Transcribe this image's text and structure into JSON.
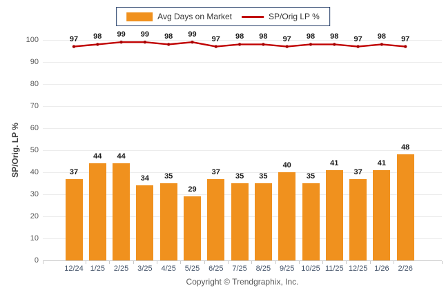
{
  "chart_data": {
    "type": "bar",
    "categories": [
      "12/24",
      "1/25",
      "2/25",
      "3/25",
      "4/25",
      "5/25",
      "6/25",
      "7/25",
      "8/25",
      "9/25",
      "10/25",
      "11/25",
      "12/25",
      "1/26",
      "2/26"
    ],
    "series": [
      {
        "name": "Avg Days on Market",
        "type": "bar",
        "color": "#F0911E",
        "values": [
          37,
          44,
          44,
          34,
          35,
          29,
          37,
          35,
          35,
          40,
          35,
          41,
          37,
          41,
          48
        ]
      },
      {
        "name": "SP/Orig LP %",
        "type": "line",
        "color": "#C00000",
        "values": [
          97,
          98,
          99,
          99,
          98,
          99,
          97,
          98,
          98,
          97,
          98,
          98,
          97,
          98,
          97
        ]
      }
    ],
    "ylabel": "SP/Orig. LP %",
    "xlabel": "",
    "ylim": [
      0,
      100
    ],
    "ytick_step": 10,
    "grid": true,
    "legend_position": "top-center",
    "value_labels": true
  },
  "footer": {
    "copyright": "Copyright © Trendgraphix, Inc."
  },
  "colors": {
    "bar": "#F0911E",
    "line": "#C00000",
    "line_marker": "#A50000",
    "grid": "#ECECEC",
    "axis": "#C9C9C9",
    "legend_border": "#1F3864"
  }
}
